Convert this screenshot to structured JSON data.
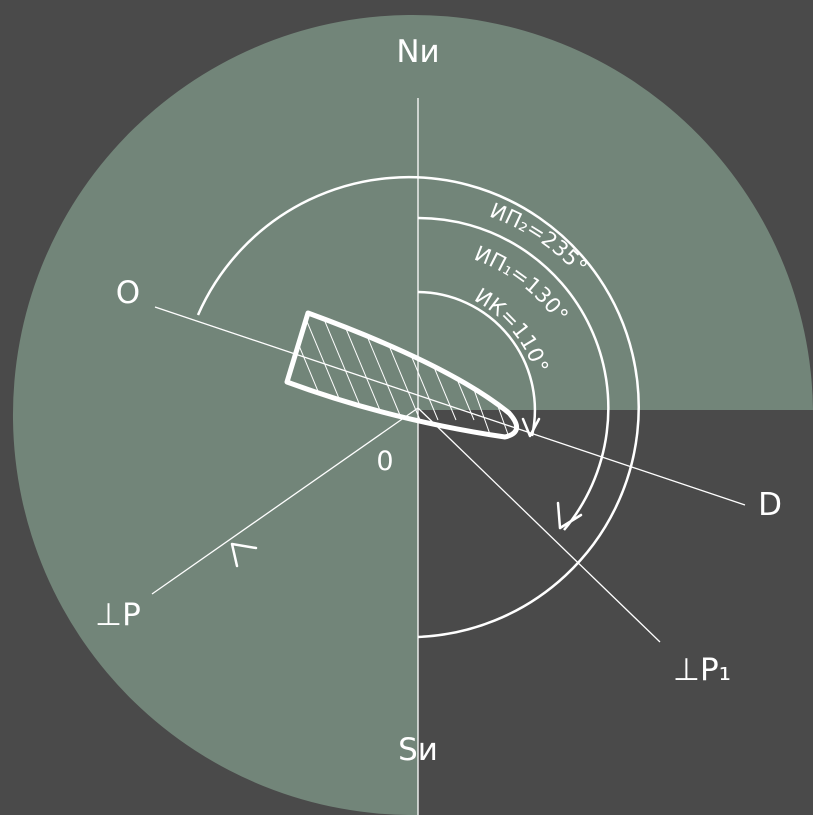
{
  "colors": {
    "background": "#4a4a4a",
    "disc": "#728579",
    "line": "#ffffff"
  },
  "labels": {
    "north": "Nи",
    "south": "Sи",
    "origin": "0",
    "o_point": "O",
    "d_point": "D",
    "perp_p": "⊥P",
    "perp_p1": "⊥P₁"
  },
  "angles": {
    "course": "ИК=110°",
    "bearing1": "ИП₁=130°",
    "bearing2": "ИП₂=235°"
  }
}
